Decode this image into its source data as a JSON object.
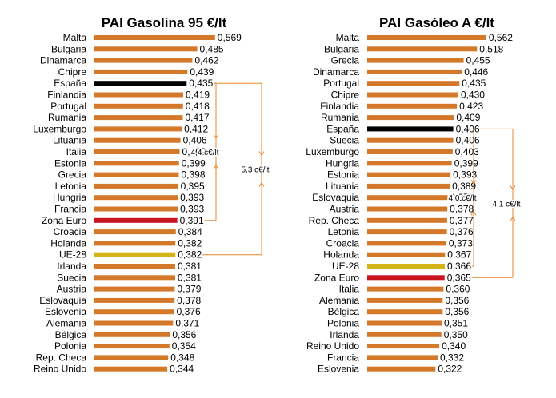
{
  "colors": {
    "bar_default": "#D4792A",
    "bar_spain": "#000000",
    "bar_eurozone": "#C8141E",
    "bar_eu28": "#D4B418",
    "annotation": "#E8872C",
    "text": "#000000"
  },
  "chart_data": [
    {
      "type": "bar",
      "orientation": "horizontal",
      "title": "PAI Gasolina 95 €/lt",
      "categories": [
        "Malta",
        "Bulgaria",
        "Dinamarca",
        "Chipre",
        "España",
        "Finlandia",
        "Portugal",
        "Rumania",
        "Luxemburgo",
        "Lituania",
        "Italia",
        "Estonia",
        "Grecia",
        "Letonia",
        "Hungria",
        "Francia",
        "Zona Euro",
        "Croacia",
        "Holanda",
        "UE-28",
        "Irlanda",
        "Suecia",
        "Austria",
        "Eslovaquia",
        "Eslovenia",
        "Alemania",
        "Bélgica",
        "Polonia",
        "Rep. Checa",
        "Reino Unido"
      ],
      "values": [
        0.569,
        0.485,
        0.462,
        0.439,
        0.435,
        0.419,
        0.418,
        0.417,
        0.412,
        0.406,
        0.402,
        0.399,
        0.398,
        0.395,
        0.393,
        0.393,
        0.391,
        0.384,
        0.382,
        0.382,
        0.381,
        0.381,
        0.379,
        0.378,
        0.376,
        0.371,
        0.356,
        0.354,
        0.348,
        0.344
      ],
      "value_labels": [
        "0,569",
        "0,485",
        "0,462",
        "0,439",
        "0,435",
        "0,419",
        "0,418",
        "0,417",
        "0,412",
        "0,406",
        "0,402",
        "0,399",
        "0,398",
        "0,395",
        "0,393",
        "0,393",
        "0,391",
        "0,384",
        "0,382",
        "0,382",
        "0,381",
        "0,381",
        "0,379",
        "0,378",
        "0,376",
        "0,371",
        "0,356",
        "0,354",
        "0,348",
        "0,344"
      ],
      "highlights": {
        "España": "bar_spain",
        "Zona Euro": "bar_eurozone",
        "UE-28": "bar_eu28"
      },
      "annotations": [
        {
          "from": "España",
          "to": "Zona Euro",
          "text": "4,4 c€/lt"
        },
        {
          "from": "España",
          "to": "UE-28",
          "text": "5,3 c€/lt"
        }
      ]
    },
    {
      "type": "bar",
      "orientation": "horizontal",
      "title": "PAI Gasóleo A €/lt",
      "categories": [
        "Malta",
        "Bulgaria",
        "Grecia",
        "Dinamarca",
        "Portugal",
        "Chipre",
        "Finlandia",
        "Rumania",
        "España",
        "Suecia",
        "Luxemburgo",
        "Hungria",
        "Estonia",
        "Lituania",
        "Eslovaquia",
        "Austria",
        "Rep. Checa",
        "Letonia",
        "Croacia",
        "Holanda",
        "UE-28",
        "Zona Euro",
        "Italia",
        "Alemania",
        "Bélgica",
        "Polonia",
        "Irlanda",
        "Reino Unido",
        "Francia",
        "Eslovenia"
      ],
      "values": [
        0.562,
        0.518,
        0.455,
        0.446,
        0.435,
        0.43,
        0.423,
        0.409,
        0.406,
        0.406,
        0.403,
        0.399,
        0.393,
        0.389,
        0.379,
        0.378,
        0.377,
        0.376,
        0.373,
        0.367,
        0.366,
        0.365,
        0.36,
        0.356,
        0.356,
        0.351,
        0.35,
        0.34,
        0.332,
        0.322
      ],
      "value_labels": [
        "0,562",
        "0,518",
        "0,455",
        "0,446",
        "0,435",
        "0,430",
        "0,423",
        "0,409",
        "0,406",
        "0,406",
        "0,403",
        "0,399",
        "0,393",
        "0,389",
        "0,379",
        "0,378",
        "0,377",
        "0,376",
        "0,373",
        "0,367",
        "0,366",
        "0,365",
        "0,360",
        "0,356",
        "0,356",
        "0,351",
        "0,350",
        "0,340",
        "0,332",
        "0,322"
      ],
      "highlights": {
        "España": "bar_spain",
        "Zona Euro": "bar_eurozone",
        "UE-28": "bar_eu28"
      },
      "annotations": [
        {
          "from": "España",
          "to": "UE-28",
          "text": "4,0 c€/lt"
        },
        {
          "from": "España",
          "to": "Zona Euro",
          "text": "4,1 c€/lt"
        }
      ]
    }
  ]
}
